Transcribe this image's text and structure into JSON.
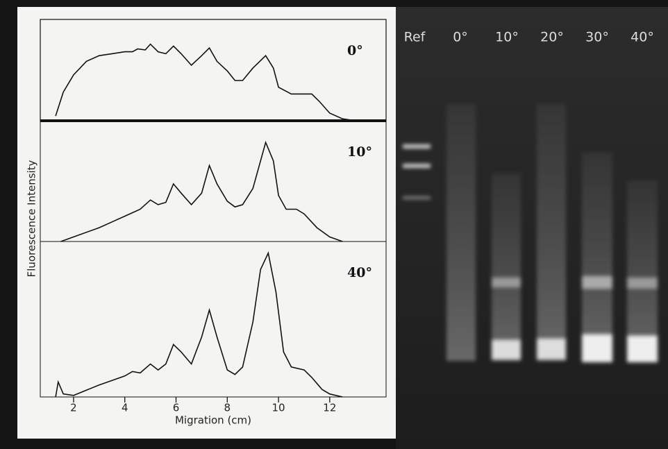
{
  "chart_data": [
    {
      "type": "line",
      "label": "0°",
      "xlim": [
        0.7,
        14.2
      ],
      "ylim": [
        0,
        100
      ],
      "x": [
        1.3,
        1.6,
        2,
        2.5,
        3,
        3.5,
        4,
        4.3,
        4.5,
        4.8,
        5,
        5.3,
        5.6,
        5.9,
        6.2,
        6.6,
        7,
        7.3,
        7.6,
        8,
        8.3,
        8.6,
        9,
        9.5,
        9.8,
        10,
        10.5,
        11,
        11.3,
        11.6,
        12,
        12.5,
        13
      ],
      "values": [
        5,
        30,
        48,
        62,
        68,
        70,
        72,
        72,
        75,
        74,
        80,
        72,
        70,
        78,
        70,
        58,
        68,
        76,
        62,
        52,
        42,
        42,
        55,
        68,
        55,
        35,
        28,
        28,
        28,
        20,
        8,
        2,
        0
      ]
    },
    {
      "type": "line",
      "label": "10°",
      "ylabel": "Fluorescence Intensity",
      "xlim": [
        0.7,
        14.2
      ],
      "ylim": [
        0,
        100
      ],
      "x": [
        1.5,
        2,
        3,
        3.5,
        4,
        4.3,
        4.6,
        5,
        5.3,
        5.6,
        5.9,
        6.2,
        6.6,
        7,
        7.3,
        7.6,
        8,
        8.3,
        8.6,
        9,
        9.5,
        9.8,
        10,
        10.3,
        10.7,
        11,
        11.5,
        12,
        12.5
      ],
      "values": [
        0,
        4,
        12,
        17,
        22,
        25,
        28,
        36,
        32,
        34,
        50,
        42,
        32,
        42,
        66,
        50,
        35,
        30,
        32,
        46,
        86,
        70,
        40,
        28,
        28,
        24,
        12,
        4,
        0
      ]
    },
    {
      "type": "line",
      "label": "40°",
      "xlabel": "Migration (cm)",
      "xlim": [
        0.7,
        14.2
      ],
      "ylim": [
        0,
        100
      ],
      "xticks": [
        2,
        4,
        6,
        8,
        10,
        12
      ],
      "x": [
        1.3,
        1.4,
        1.6,
        2,
        3,
        3.5,
        4,
        4.3,
        4.6,
        5,
        5.3,
        5.6,
        5.9,
        6.2,
        6.6,
        7,
        7.3,
        7.6,
        8,
        8.3,
        8.6,
        9,
        9.3,
        9.6,
        9.9,
        10.2,
        10.5,
        11,
        11.3,
        11.7,
        12,
        12.5
      ],
      "values": [
        0,
        10,
        2,
        1,
        8,
        11,
        14,
        17,
        16,
        22,
        18,
        22,
        35,
        30,
        22,
        40,
        58,
        40,
        18,
        15,
        20,
        50,
        85,
        96,
        70,
        30,
        20,
        18,
        13,
        5,
        2,
        0
      ]
    }
  ],
  "gel": {
    "lanes": [
      "Ref",
      "0°",
      "10°",
      "20°",
      "30°",
      "40°"
    ]
  }
}
